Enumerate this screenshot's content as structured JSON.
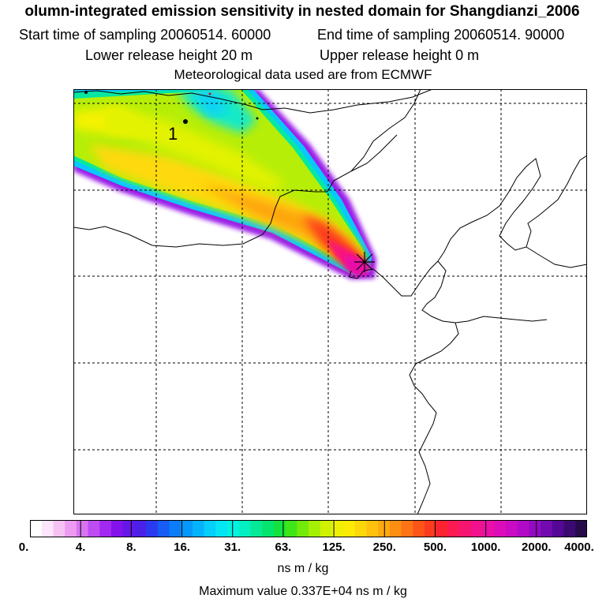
{
  "header": {
    "title": "olumn-integrated emission sensitivity in nested domain for Shangdianzi_2006",
    "start_label": "Start time of sampling 20060514. 60000",
    "end_label": "End time of sampling 20060514. 90000",
    "lower_label": "Lower release height   20 m",
    "upper_label": "Upper release height    0 m",
    "met_label": "Meteorological data used are from ECMWF"
  },
  "map": {
    "contour_label": "1"
  },
  "colorbar": {
    "ticks": [
      "0.",
      "4.",
      "8.",
      "16.",
      "31.",
      "63.",
      "125.",
      "250.",
      "500.",
      "1000.",
      "2000.",
      "4000."
    ],
    "colors": [
      "#ffffff",
      "#fde6fb",
      "#f6c2f3",
      "#ed9bf0",
      "#d874f0",
      "#bf4bf2",
      "#a328f0",
      "#8313ea",
      "#6516e8",
      "#4b21e9",
      "#2a3bef",
      "#165cf5",
      "#0b7df9",
      "#0798fb",
      "#05b3fd",
      "#06cffb",
      "#05e6f4",
      "#03f3e2",
      "#05f0c1",
      "#06ea98",
      "#05e56d",
      "#14e23f",
      "#3fe617",
      "#72ea0b",
      "#a5ef05",
      "#cff203",
      "#eef103",
      "#fdea05",
      "#fed70a",
      "#fec10d",
      "#fea90f",
      "#fd8e12",
      "#fd7315",
      "#fd5518",
      "#fc3a1e",
      "#fc2232",
      "#fb1a52",
      "#f81572",
      "#f2128e",
      "#e910a5",
      "#dc0db8",
      "#c90bc3",
      "#b10ac6",
      "#930ac0",
      "#730aaf",
      "#540895",
      "#3a0a70",
      "#260a4a"
    ],
    "units": "ns m / kg",
    "max_label": "Maximum value  0.337E+04 ns m / kg"
  }
}
